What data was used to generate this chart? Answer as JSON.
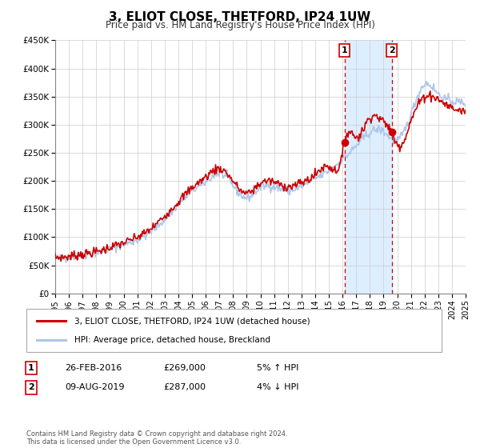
{
  "title": "3, ELIOT CLOSE, THETFORD, IP24 1UW",
  "subtitle": "Price paid vs. HM Land Registry's House Price Index (HPI)",
  "ylim": [
    0,
    450000
  ],
  "xlim": [
    1995,
    2025
  ],
  "yticks": [
    0,
    50000,
    100000,
    150000,
    200000,
    250000,
    300000,
    350000,
    400000,
    450000
  ],
  "ytick_labels": [
    "£0",
    "£50K",
    "£100K",
    "£150K",
    "£200K",
    "£250K",
    "£300K",
    "£350K",
    "£400K",
    "£450K"
  ],
  "xticks": [
    1995,
    1996,
    1997,
    1998,
    1999,
    2000,
    2001,
    2002,
    2003,
    2004,
    2005,
    2006,
    2007,
    2008,
    2009,
    2010,
    2011,
    2012,
    2013,
    2014,
    2015,
    2016,
    2017,
    2018,
    2019,
    2020,
    2021,
    2022,
    2023,
    2024,
    2025
  ],
  "hpi_color": "#aec6e8",
  "sold_color": "#cc0000",
  "marker_color": "#cc0000",
  "event1_x": 2016.15,
  "event2_x": 2019.6,
  "event1_y": 269000,
  "event2_y": 287000,
  "event1_label": "1",
  "event2_label": "2",
  "shaded_region_color": "#ddeeff",
  "dashed_line_color": "#cc0000",
  "legend_line1": "3, ELIOT CLOSE, THETFORD, IP24 1UW (detached house)",
  "legend_line2": "HPI: Average price, detached house, Breckland",
  "table_row1_num": "1",
  "table_row1_date": "26-FEB-2016",
  "table_row1_price": "£269,000",
  "table_row1_hpi": "5% ↑ HPI",
  "table_row2_num": "2",
  "table_row2_date": "09-AUG-2019",
  "table_row2_price": "£287,000",
  "table_row2_hpi": "4% ↓ HPI",
  "footer": "Contains HM Land Registry data © Crown copyright and database right 2024.\nThis data is licensed under the Open Government Licence v3.0.",
  "background_color": "#ffffff",
  "grid_color": "#cccccc",
  "hpi_kp_years": [
    1995,
    1996,
    1997,
    1998,
    1999,
    2000,
    2001,
    2002,
    2003,
    2004,
    2005,
    2006,
    2007,
    2008,
    2009,
    2010,
    2011,
    2012,
    2013,
    2014,
    2015,
    2016,
    2017,
    2018,
    2019,
    2020,
    2021,
    2022,
    2023,
    2024,
    2025
  ],
  "hpi_kp_values": [
    62000,
    64000,
    68000,
    72000,
    79000,
    87000,
    95000,
    110000,
    132000,
    158000,
    182000,
    198000,
    213000,
    192000,
    170000,
    188000,
    190000,
    183000,
    190000,
    204000,
    218000,
    238000,
    262000,
    286000,
    288000,
    272000,
    318000,
    372000,
    355000,
    342000,
    338000
  ],
  "sold_kp_years": [
    1995,
    1996,
    1997,
    1998,
    1999,
    2000,
    2001,
    2002,
    2003,
    2004,
    2005,
    2006,
    2007,
    2008,
    2009,
    2010,
    2011,
    2012,
    2013,
    2014,
    2015,
    2016,
    2016.15,
    2017,
    2018,
    2019,
    2019.6,
    2020,
    2021,
    2022,
    2023,
    2024,
    2025
  ],
  "sold_kp_values": [
    64000,
    66000,
    70000,
    74000,
    82000,
    90000,
    100000,
    115000,
    138000,
    163000,
    188000,
    207000,
    222000,
    200000,
    178000,
    196000,
    198000,
    190000,
    197000,
    211000,
    226000,
    248000,
    269000,
    278000,
    313000,
    305000,
    287000,
    265000,
    306000,
    350000,
    345000,
    330000,
    325000
  ],
  "hpi_noise_seed": 42,
  "sold_noise_seed": 7,
  "noise_std": 4000
}
